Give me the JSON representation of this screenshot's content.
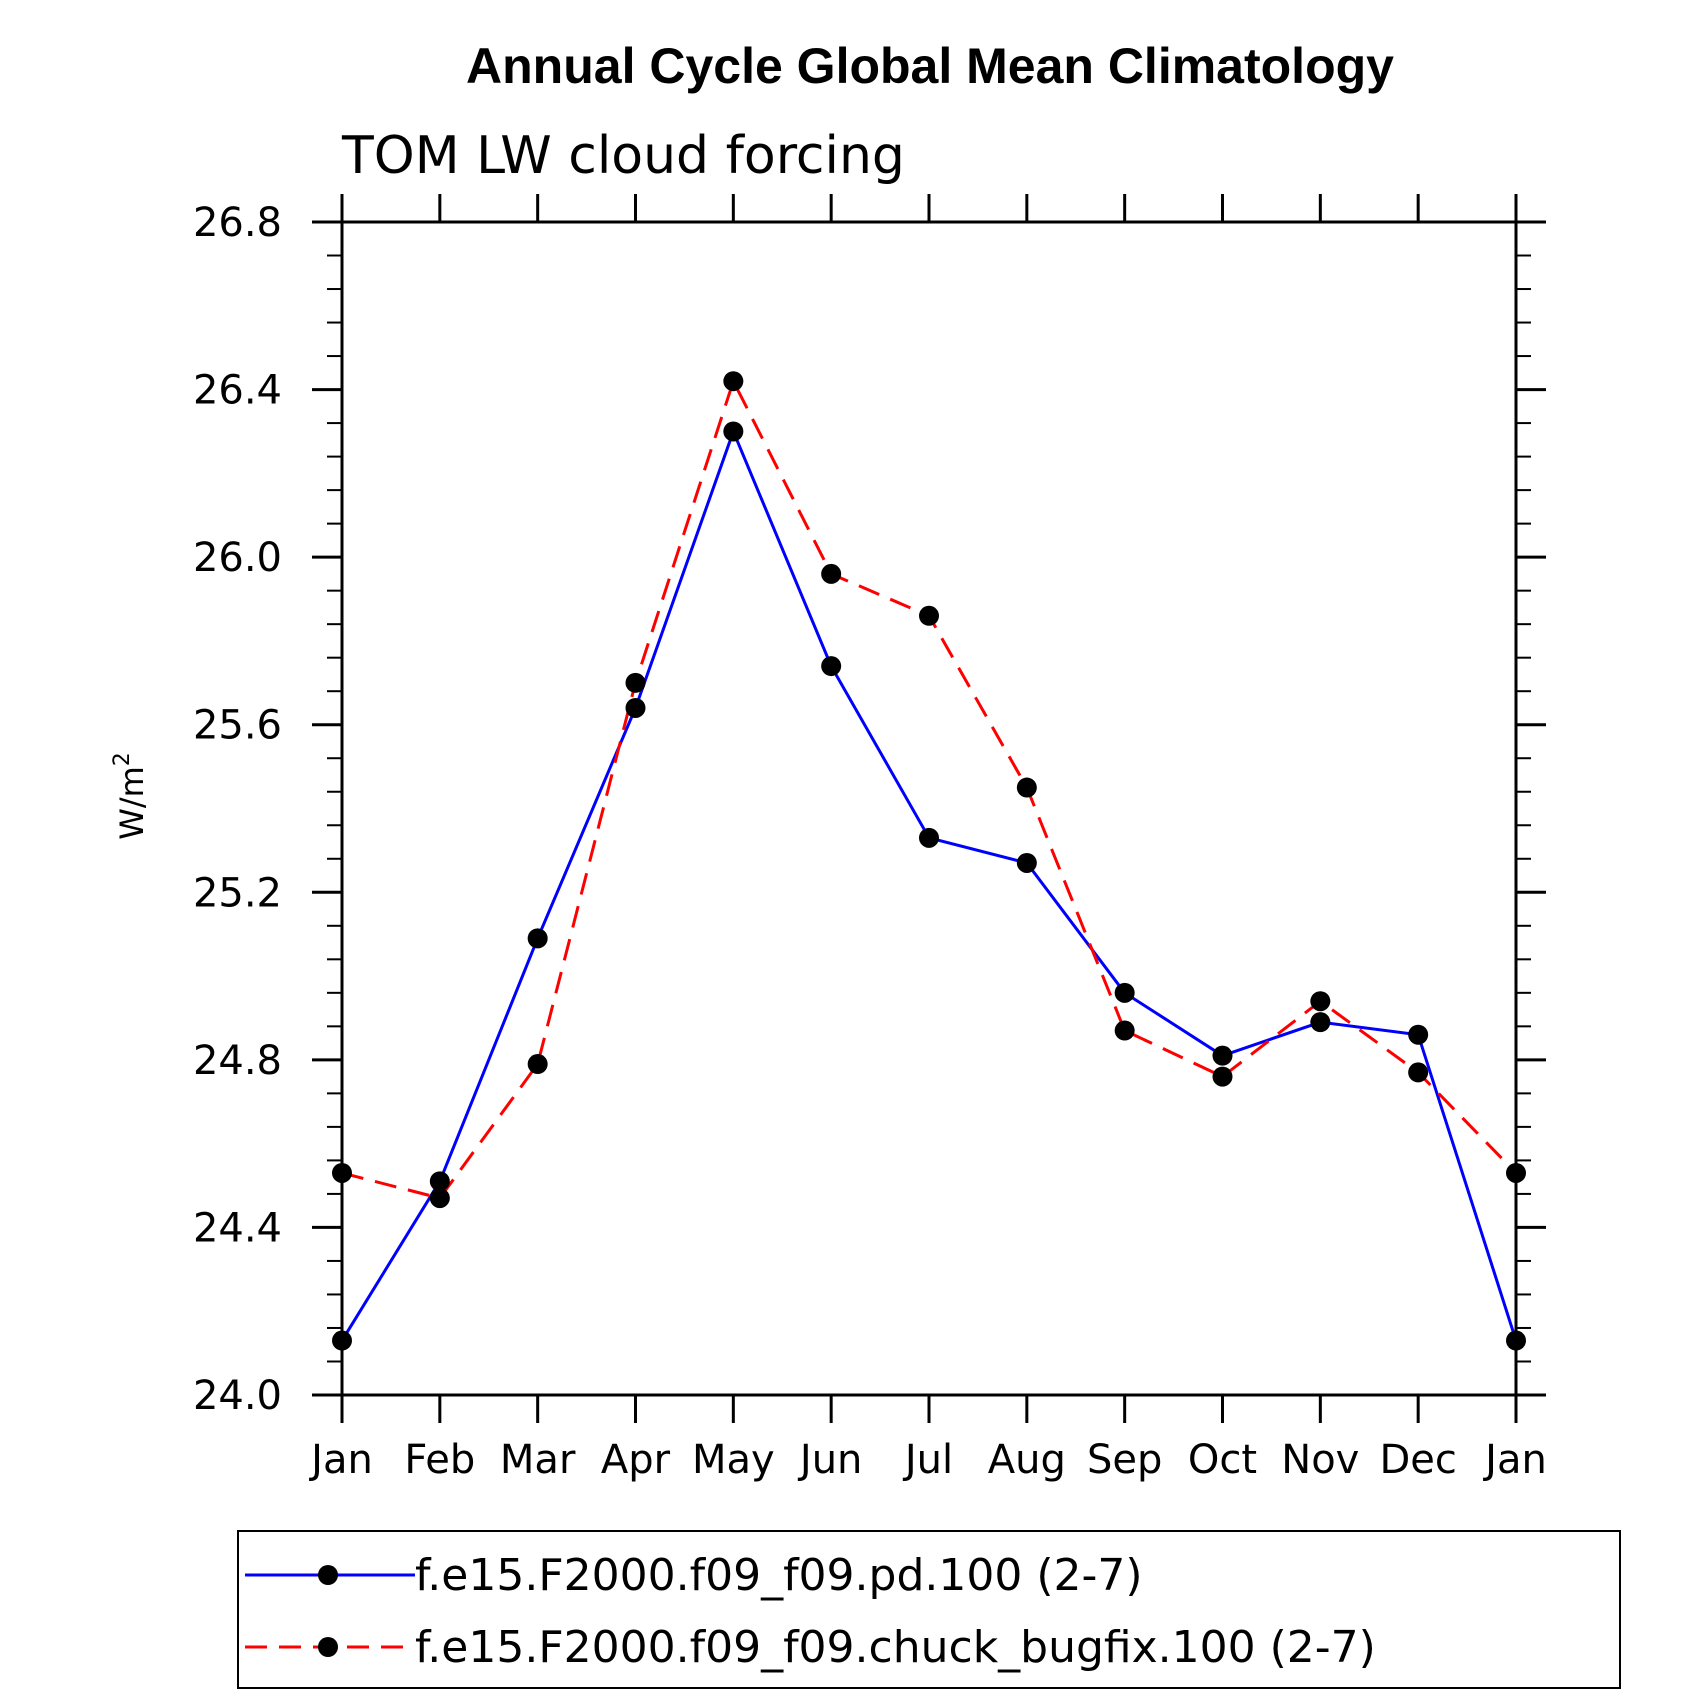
{
  "chart_data": {
    "type": "line",
    "title": "Annual Cycle Global Mean Climatology",
    "subtitle": "TOM LW cloud forcing",
    "ylabel": "W/m",
    "ylabel_superscript": "2",
    "xlabel": "",
    "categories": [
      "Jan",
      "Feb",
      "Mar",
      "Apr",
      "May",
      "Jun",
      "Jul",
      "Aug",
      "Sep",
      "Oct",
      "Nov",
      "Dec",
      "Jan"
    ],
    "ylim": [
      24.0,
      26.8
    ],
    "yticks": [
      "24.0",
      "24.4",
      "24.8",
      "25.2",
      "25.6",
      "26.0",
      "26.4",
      "26.8"
    ],
    "series": [
      {
        "name": "f.e15.F2000.f09_f09.pd.100 (2-7)",
        "color": "#0000ff",
        "dash": "solid",
        "values": [
          24.13,
          24.51,
          25.09,
          25.64,
          26.3,
          25.74,
          25.33,
          25.27,
          24.96,
          24.81,
          24.89,
          24.86,
          24.13
        ]
      },
      {
        "name": "f.e15.F2000.f09_f09.chuck_bugfix.100 (2-7)",
        "color": "#ff0000",
        "dash": "dashed",
        "values": [
          24.53,
          24.47,
          24.79,
          25.7,
          26.42,
          25.96,
          25.86,
          25.45,
          24.87,
          24.76,
          24.94,
          24.77,
          24.53
        ]
      }
    ],
    "legend_position": "bottom"
  }
}
